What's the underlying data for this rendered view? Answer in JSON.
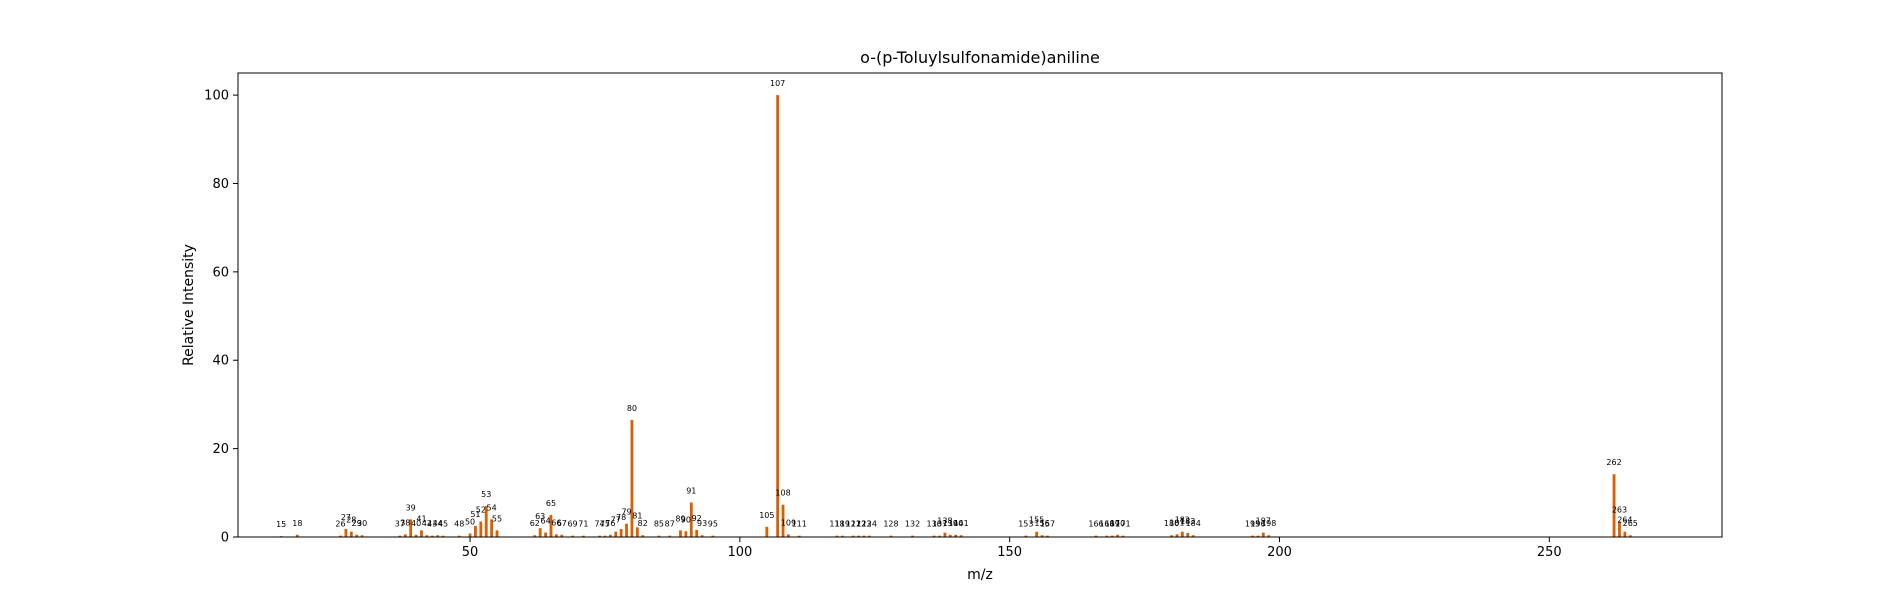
{
  "chart_data": {
    "type": "bar",
    "title": "o-(p-Toluylsulfonamide)aniline",
    "xlabel": "m/z",
    "ylabel": "Relative Intensity",
    "xlim": [
      7,
      282
    ],
    "ylim": [
      0,
      105
    ],
    "xticks": [
      50,
      100,
      150,
      200,
      250
    ],
    "yticks": [
      0,
      20,
      40,
      60,
      80,
      100
    ],
    "bar_color": "#d95f02",
    "grid": false,
    "x": [
      15,
      18,
      26,
      27,
      28,
      29,
      30,
      37,
      38,
      39,
      40,
      41,
      42,
      43,
      44,
      45,
      48,
      50,
      51,
      52,
      53,
      54,
      55,
      62,
      63,
      64,
      65,
      66,
      67,
      69,
      71,
      74,
      75,
      76,
      77,
      78,
      79,
      80,
      81,
      82,
      85,
      87,
      89,
      90,
      91,
      92,
      93,
      95,
      105,
      107,
      108,
      109,
      111,
      118,
      119,
      121,
      122,
      123,
      124,
      128,
      132,
      136,
      137,
      138,
      139,
      140,
      141,
      153,
      155,
      156,
      157,
      166,
      168,
      169,
      170,
      171,
      180,
      181,
      182,
      183,
      184,
      195,
      196,
      197,
      198,
      262,
      263,
      264,
      265
    ],
    "y": [
      0.2,
      0.5,
      0.3,
      1.8,
      1.2,
      0.5,
      0.4,
      0.3,
      0.6,
      4.0,
      0.5,
      1.5,
      0.4,
      0.3,
      0.4,
      0.3,
      0.3,
      0.8,
      2.5,
      3.5,
      7.0,
      4.0,
      1.5,
      0.4,
      2.0,
      1.0,
      5.0,
      0.6,
      0.5,
      0.3,
      0.3,
      0.3,
      0.3,
      0.5,
      1.2,
      1.8,
      3.0,
      26.5,
      2.2,
      0.4,
      0.3,
      0.3,
      1.5,
      1.3,
      7.8,
      1.6,
      0.4,
      0.3,
      2.3,
      100.0,
      7.3,
      0.6,
      0.3,
      0.3,
      0.3,
      0.3,
      0.3,
      0.3,
      0.3,
      0.3,
      0.3,
      0.3,
      0.3,
      1.0,
      0.5,
      0.5,
      0.4,
      0.3,
      1.2,
      0.4,
      0.3,
      0.3,
      0.3,
      0.3,
      0.5,
      0.3,
      0.4,
      0.6,
      1.2,
      0.9,
      0.4,
      0.3,
      0.3,
      1.0,
      0.4,
      14.2,
      3.5,
      1.2,
      0.4
    ]
  }
}
